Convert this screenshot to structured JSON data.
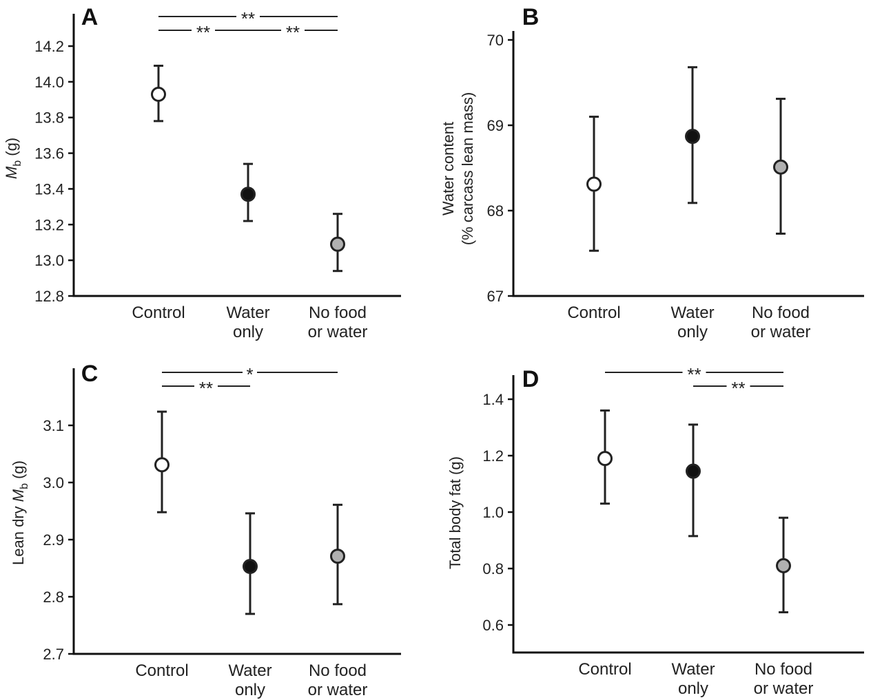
{
  "chart_data": [
    {
      "panel": "A",
      "type": "scatter",
      "categories": [
        "Control",
        "Water\nonly",
        "No food\nor water"
      ],
      "ylabel": {
        "prefix": "",
        "italic": "M",
        "sub": "b",
        "suffix": " (g)"
      },
      "ylim": [
        12.8,
        14.3
      ],
      "yticks": [
        12.8,
        13.0,
        13.2,
        13.4,
        13.6,
        13.8,
        14.0,
        14.2
      ],
      "ytick_decimals": 1,
      "series": [
        {
          "category": "Control",
          "mean": 13.93,
          "upper": 14.09,
          "lower": 13.78,
          "fill": "#ffffff"
        },
        {
          "category": "Water only",
          "mean": 13.37,
          "upper": 13.54,
          "lower": 13.22,
          "fill": "#111111"
        },
        {
          "category": "No food or water",
          "mean": 13.09,
          "upper": 13.26,
          "lower": 12.94,
          "fill": "#b0b0b0"
        }
      ],
      "significance": [
        {
          "from": 0,
          "to": 2,
          "label": "**",
          "row": 0
        },
        {
          "from": 0,
          "to": 1,
          "label": "**",
          "row": 1
        },
        {
          "from": 1,
          "to": 2,
          "label": "**",
          "row": 1
        }
      ]
    },
    {
      "panel": "B",
      "type": "scatter",
      "categories": [
        "Control",
        "Water\nonly",
        "No food\nor water"
      ],
      "ylabel": {
        "lines": [
          "Water content",
          "(% carcass lean mass)"
        ]
      },
      "ylim": [
        67,
        70
      ],
      "yticks": [
        67,
        68,
        69,
        70
      ],
      "ytick_decimals": 0,
      "series": [
        {
          "category": "Control",
          "mean": 68.31,
          "upper": 69.1,
          "lower": 67.53,
          "fill": "#ffffff"
        },
        {
          "category": "Water only",
          "mean": 68.87,
          "upper": 69.68,
          "lower": 68.09,
          "fill": "#111111"
        },
        {
          "category": "No food or water",
          "mean": 68.51,
          "upper": 69.31,
          "lower": 67.73,
          "fill": "#b0b0b0"
        }
      ],
      "significance": []
    },
    {
      "panel": "C",
      "type": "scatter",
      "categories": [
        "Control",
        "Water\nonly",
        "No food\nor water"
      ],
      "ylabel": {
        "prefix": "Lean dry ",
        "italic": "M",
        "sub": "b",
        "suffix": " (g)"
      },
      "ylim": [
        2.7,
        3.2
      ],
      "yticks": [
        2.7,
        2.8,
        2.9,
        3.0,
        3.1
      ],
      "ytick_decimals": 1,
      "series": [
        {
          "category": "Control",
          "mean": 3.031,
          "upper": 3.124,
          "lower": 2.948,
          "fill": "#ffffff"
        },
        {
          "category": "Water only",
          "mean": 2.853,
          "upper": 2.946,
          "lower": 2.77,
          "fill": "#111111"
        },
        {
          "category": "No food or water",
          "mean": 2.871,
          "upper": 2.961,
          "lower": 2.787,
          "fill": "#b0b0b0"
        }
      ],
      "significance": [
        {
          "from": 0,
          "to": 2,
          "label": "*",
          "row": 0
        },
        {
          "from": 0,
          "to": 1,
          "label": "**",
          "row": 1
        }
      ]
    },
    {
      "panel": "D",
      "type": "scatter",
      "categories": [
        "Control",
        "Water\nonly",
        "No food\nor water"
      ],
      "ylabel": {
        "lines": [
          "Total body fat (g)"
        ]
      },
      "ylim": [
        0.5,
        1.5
      ],
      "yticks": [
        0.6,
        0.8,
        1.0,
        1.2,
        1.4
      ],
      "ytick_decimals": 1,
      "series": [
        {
          "category": "Control",
          "mean": 1.19,
          "upper": 1.36,
          "lower": 1.03,
          "fill": "#ffffff"
        },
        {
          "category": "Water only",
          "mean": 1.145,
          "upper": 1.31,
          "lower": 0.915,
          "fill": "#111111"
        },
        {
          "category": "No food or water",
          "mean": 0.81,
          "upper": 0.98,
          "lower": 0.645,
          "fill": "#b0b0b0"
        }
      ],
      "significance": [
        {
          "from": 0,
          "to": 2,
          "label": "**",
          "row": 0
        },
        {
          "from": 1,
          "to": 2,
          "label": "**",
          "row": 1
        }
      ]
    }
  ]
}
